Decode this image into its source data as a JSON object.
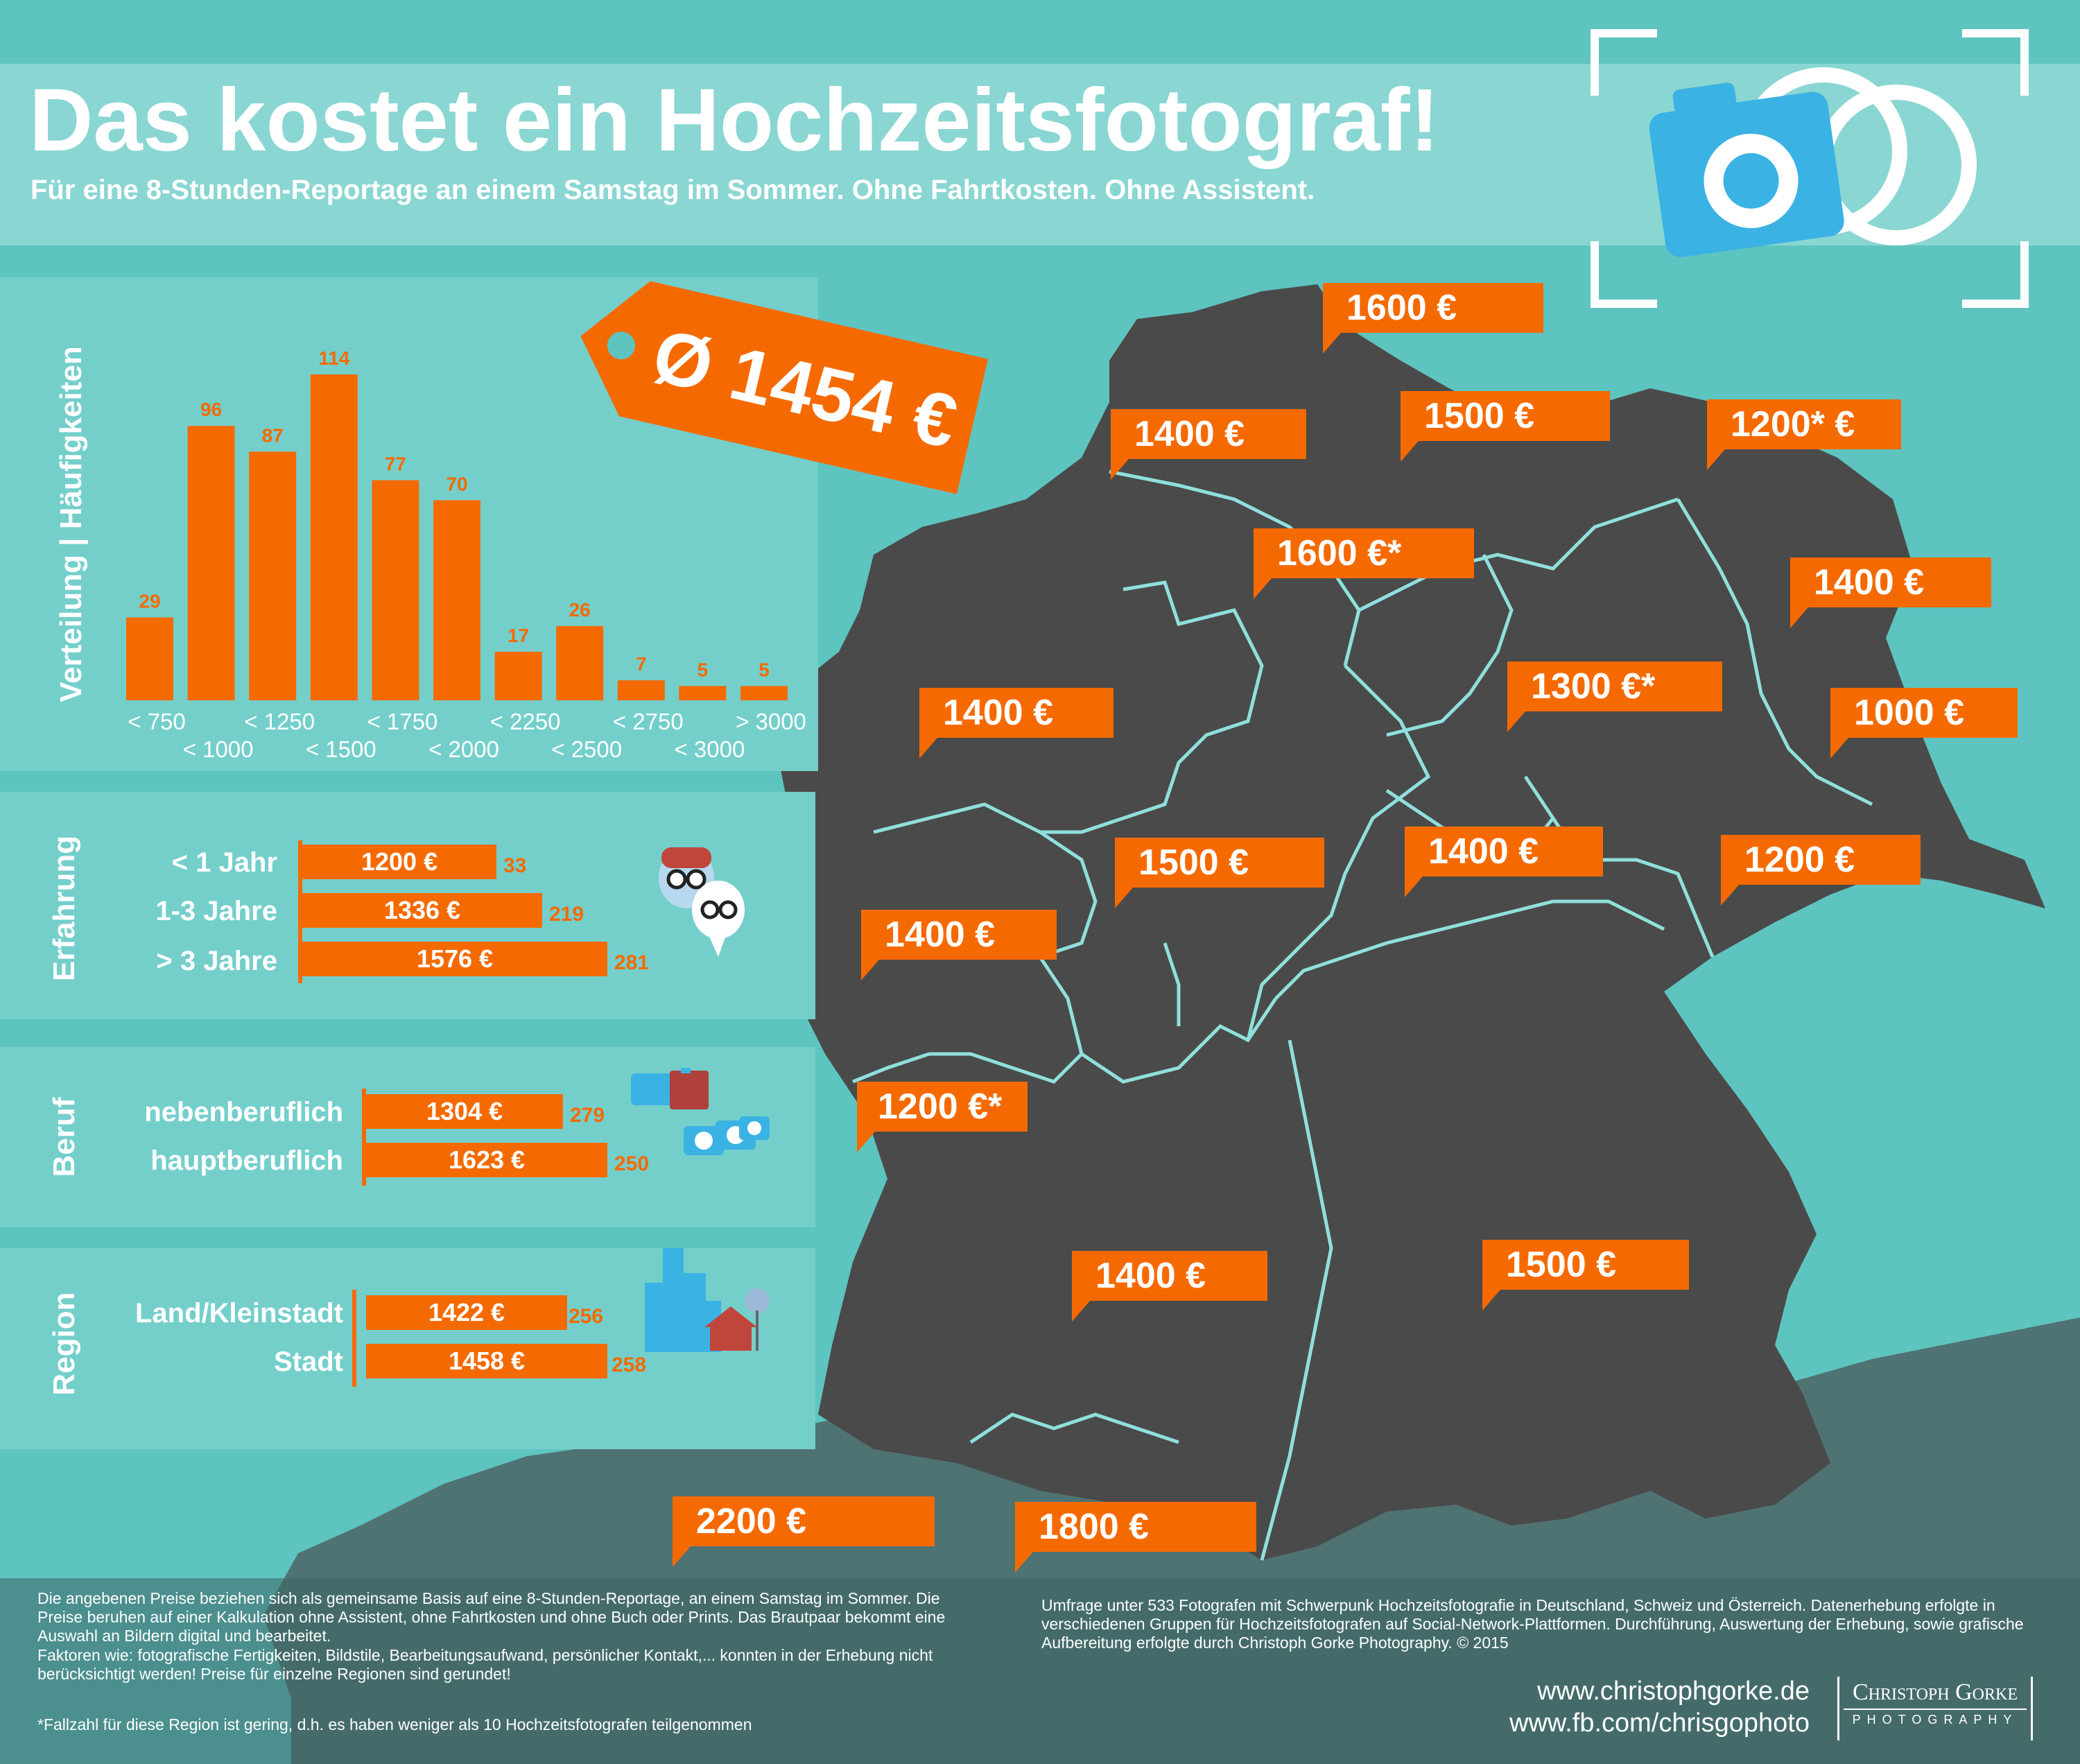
{
  "header": {
    "title": "Das kostet ein Hochzeitsfotograf!",
    "subtitle": "Für eine 8-Stunden-Reportage an einem Samstag im Sommer. Ohne Fahrtkosten. Ohne Assistent."
  },
  "average_tag": "Ø 1454 €",
  "colors": {
    "accent": "#f56a00",
    "background": "#5ec4c0",
    "map": "#4a4a4a",
    "panel": "#74cfcb"
  },
  "icons": [
    "camera-icon",
    "wedding-rings-icon",
    "viewfinder-icon",
    "photographer-faces-icon",
    "cameras-icon",
    "city-house-icon"
  ],
  "chart_data": [
    {
      "type": "bar",
      "ylabel": "Verteilung | Häufigkeiten",
      "categories": [
        "< 750",
        "< 1000",
        "< 1250",
        "< 1500",
        "< 1750",
        "< 2000",
        "< 2250",
        "< 2500",
        "< 2750",
        "< 3000",
        "> 3000"
      ],
      "values": [
        29,
        96,
        87,
        114,
        77,
        70,
        17,
        26,
        7,
        5,
        5
      ],
      "ylim": [
        0,
        114
      ]
    },
    {
      "type": "bar",
      "ylabel": "Erfahrung",
      "categories": [
        "< 1   Jahr",
        "1-3 Jahre",
        "> 3 Jahre"
      ],
      "values": [
        1200,
        1336,
        1576
      ],
      "value_labels": [
        "1200 €",
        "1336 €",
        "1576 €"
      ],
      "counts": [
        "33",
        "219",
        "281"
      ]
    },
    {
      "type": "bar",
      "ylabel": "Beruf",
      "categories": [
        "nebenberuflich",
        "hauptberuflich"
      ],
      "values": [
        1304,
        1623
      ],
      "value_labels": [
        "1304 €",
        "1623 €"
      ],
      "counts": [
        "279",
        "250"
      ]
    },
    {
      "type": "bar",
      "ylabel": "Region",
      "categories": [
        "Land/Kleinstadt",
        "Stadt"
      ],
      "values": [
        1422,
        1458
      ],
      "value_labels": [
        "1422 €",
        "1458 €"
      ],
      "counts": [
        "256",
        "258"
      ]
    }
  ],
  "map_prices": [
    "1600 €",
    "1400 €",
    "1500 €",
    "1200* €",
    "1600 €*",
    "1400 €",
    "1300 €*",
    "1400 €",
    "1000 €",
    "1500 €",
    "1400 €",
    "1200 €",
    "1400 €",
    "1200 €*",
    "1400 €",
    "1500 €",
    "2200 €",
    "1800 €"
  ],
  "footer": {
    "left_p1": "Die angebenen Preise beziehen sich als gemeinsame Basis auf eine 8-Stunden-Reportage, an einem Samstag im Sommer. Die Preise beruhen auf einer Kalkulation ohne Assistent, ohne Fahrtkosten und ohne Buch oder Prints. Das Brautpaar bekommt eine Auswahl an Bildern digital und bearbeitet.",
    "left_p2": "Faktoren wie: fotografische Fertigkeiten, Bildstile, Bearbeitungsaufwand, persönlicher Kontakt,... konnten in der Erhebung nicht berücksichtigt werden! Preise für einzelne Regionen sind gerundet!",
    "left_p3": "*Fallzahl für diese Region ist gering, d.h. es haben weniger als 10 Hochzeitsfotografen teilgenommen",
    "right_text": "Umfrage unter 533 Fotografen mit Schwerpunk Hochzeitsfotografie in Deutschland, Schweiz und Österreich. Datenerhebung erfolgte in verschiedenen Gruppen für Hochzeitsfotografen auf Social-Network-Plattformen. Durchführung, Auswertung der Erhebung, sowie grafische Aufbereitung erfolgte durch Christoph Gorke Photography. © 2015",
    "url1": "www.christophgorke.de",
    "url2": "www.fb.com/chrisgophoto",
    "logo_name": "Christoph Gorke",
    "logo_sub": "PHOTOGRAPHY"
  }
}
